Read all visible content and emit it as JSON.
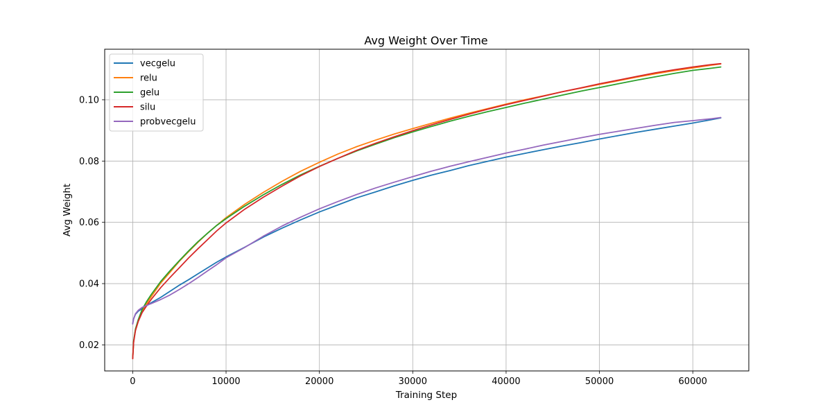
{
  "chart_data": {
    "type": "line",
    "title": "Avg Weight Over Time",
    "xlabel": "Training Step",
    "ylabel": "Avg Weight",
    "xlim": [
      -3000,
      66000
    ],
    "ylim": [
      0.0115,
      0.1165
    ],
    "xticks": [
      0,
      10000,
      20000,
      30000,
      40000,
      50000,
      60000
    ],
    "xtick_labels": [
      "0",
      "10000",
      "20000",
      "30000",
      "40000",
      "50000",
      "60000"
    ],
    "yticks": [
      0.02,
      0.04,
      0.06,
      0.08,
      0.1
    ],
    "ytick_labels": [
      "0.02",
      "0.04",
      "0.06",
      "0.08",
      "0.10"
    ],
    "grid": true,
    "legend_position": "top-left",
    "series": [
      {
        "name": "vecgelu",
        "color": "#1f77b4",
        "x": [
          0,
          100,
          300,
          600,
          1000,
          1500,
          2000,
          3000,
          4000,
          5000,
          6000,
          7000,
          8000,
          9000,
          10000,
          12000,
          14000,
          16000,
          18000,
          20000,
          22000,
          24000,
          26000,
          28000,
          30000,
          32000,
          34000,
          36000,
          38000,
          40000,
          42000,
          44000,
          46000,
          48000,
          50000,
          52000,
          54000,
          56000,
          58000,
          60000,
          62000,
          63000
        ],
        "y": [
          0.027,
          0.0285,
          0.03,
          0.031,
          0.0318,
          0.0328,
          0.0338,
          0.0355,
          0.0375,
          0.0395,
          0.0413,
          0.0432,
          0.0451,
          0.047,
          0.0487,
          0.0519,
          0.0552,
          0.0581,
          0.0608,
          0.0634,
          0.0657,
          0.068,
          0.0699,
          0.0719,
          0.0737,
          0.0754,
          0.0769,
          0.0785,
          0.0799,
          0.0813,
          0.0825,
          0.0837,
          0.0849,
          0.086,
          0.0872,
          0.0883,
          0.0894,
          0.0904,
          0.0914,
          0.0924,
          0.0935,
          0.0941
        ]
      },
      {
        "name": "relu",
        "color": "#ff7f0e",
        "x": [
          0,
          100,
          300,
          600,
          1000,
          1500,
          2000,
          3000,
          4000,
          5000,
          6000,
          7000,
          8000,
          9000,
          10000,
          12000,
          14000,
          16000,
          18000,
          20000,
          22000,
          24000,
          26000,
          28000,
          30000,
          32000,
          34000,
          36000,
          38000,
          40000,
          42000,
          44000,
          46000,
          48000,
          50000,
          52000,
          54000,
          56000,
          58000,
          60000,
          62000,
          63000
        ],
        "y": [
          0.0155,
          0.021,
          0.025,
          0.028,
          0.031,
          0.0335,
          0.0358,
          0.0402,
          0.0437,
          0.0473,
          0.0505,
          0.0535,
          0.0564,
          0.059,
          0.0615,
          0.0659,
          0.0698,
          0.0734,
          0.0767,
          0.0796,
          0.0823,
          0.0847,
          0.0868,
          0.0888,
          0.0906,
          0.0923,
          0.094,
          0.0956,
          0.0971,
          0.0986,
          0.1,
          0.1013,
          0.1026,
          0.1038,
          0.105,
          0.1062,
          0.1074,
          0.1085,
          0.1095,
          0.1104,
          0.1113,
          0.1117
        ]
      },
      {
        "name": "gelu",
        "color": "#2ca02c",
        "x": [
          0,
          100,
          300,
          600,
          1000,
          1500,
          2000,
          3000,
          4000,
          5000,
          6000,
          7000,
          8000,
          9000,
          10000,
          12000,
          14000,
          16000,
          18000,
          20000,
          22000,
          24000,
          26000,
          28000,
          30000,
          32000,
          34000,
          36000,
          38000,
          40000,
          42000,
          44000,
          46000,
          48000,
          50000,
          52000,
          54000,
          56000,
          58000,
          60000,
          62000,
          63000
        ],
        "y": [
          0.0158,
          0.0212,
          0.0252,
          0.0283,
          0.0315,
          0.0342,
          0.0365,
          0.0407,
          0.0442,
          0.0475,
          0.0507,
          0.0537,
          0.0564,
          0.059,
          0.0612,
          0.0653,
          0.069,
          0.0724,
          0.0755,
          0.0783,
          0.0809,
          0.0833,
          0.0855,
          0.0876,
          0.0895,
          0.0913,
          0.093,
          0.0946,
          0.0961,
          0.0975,
          0.0989,
          0.1002,
          0.1015,
          0.1028,
          0.104,
          0.1052,
          0.1064,
          0.1075,
          0.1086,
          0.1096,
          0.1103,
          0.1107
        ]
      },
      {
        "name": "silu",
        "color": "#d62728",
        "x": [
          0,
          100,
          300,
          600,
          1000,
          1500,
          2000,
          3000,
          4000,
          5000,
          6000,
          7000,
          8000,
          9000,
          10000,
          12000,
          14000,
          16000,
          18000,
          20000,
          22000,
          24000,
          26000,
          28000,
          30000,
          32000,
          34000,
          36000,
          38000,
          40000,
          42000,
          44000,
          46000,
          48000,
          50000,
          52000,
          54000,
          56000,
          58000,
          60000,
          62000,
          63000
        ],
        "y": [
          0.0155,
          0.0208,
          0.0247,
          0.0277,
          0.0305,
          0.0328,
          0.0349,
          0.0387,
          0.042,
          0.0452,
          0.0484,
          0.0514,
          0.0543,
          0.0572,
          0.0598,
          0.0643,
          0.0682,
          0.0718,
          0.0752,
          0.0782,
          0.0809,
          0.0835,
          0.0858,
          0.0879,
          0.0899,
          0.0918,
          0.0936,
          0.0953,
          0.0969,
          0.0984,
          0.0998,
          0.1012,
          0.1026,
          0.1039,
          0.1052,
          0.1064,
          0.1076,
          0.1088,
          0.1098,
          0.1107,
          0.1115,
          0.1118
        ]
      },
      {
        "name": "probvecgelu",
        "color": "#9467bd",
        "x": [
          0,
          100,
          300,
          600,
          1000,
          1500,
          2000,
          3000,
          4000,
          5000,
          6000,
          7000,
          8000,
          9000,
          10000,
          12000,
          14000,
          16000,
          18000,
          20000,
          22000,
          24000,
          26000,
          28000,
          30000,
          32000,
          34000,
          36000,
          38000,
          40000,
          42000,
          44000,
          46000,
          48000,
          50000,
          52000,
          54000,
          56000,
          58000,
          60000,
          62000,
          63000
        ],
        "y": [
          0.0268,
          0.0285,
          0.0302,
          0.0313,
          0.0322,
          0.0329,
          0.0335,
          0.0348,
          0.0363,
          0.0381,
          0.04,
          0.042,
          0.0441,
          0.0462,
          0.0484,
          0.0518,
          0.0555,
          0.0588,
          0.0617,
          0.0644,
          0.0668,
          0.0691,
          0.0712,
          0.0731,
          0.0749,
          0.0767,
          0.0783,
          0.0798,
          0.0812,
          0.0826,
          0.0839,
          0.0852,
          0.0864,
          0.0876,
          0.0887,
          0.0897,
          0.0907,
          0.0917,
          0.0926,
          0.0932,
          0.0938,
          0.0942
        ]
      }
    ]
  }
}
